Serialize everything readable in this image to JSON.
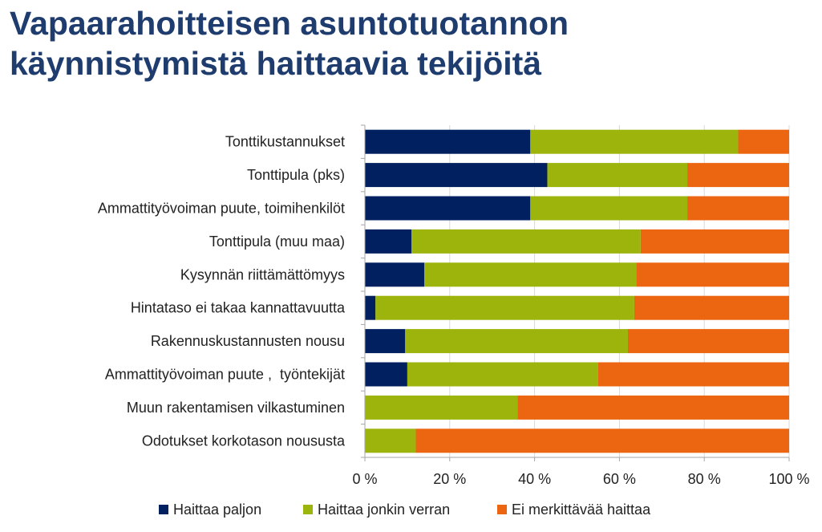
{
  "title": {
    "line1": "Vapaarahoitteisen asuntotuotannon",
    "line2": "käynnistymistä haittaavia tekijöitä",
    "color": "#1f3c6e"
  },
  "chart_data": {
    "type": "bar",
    "orientation": "horizontal",
    "stacked": "100%",
    "categories": [
      "Tonttikustannukset",
      "Tonttipula (pks)",
      "Ammattityövoiman puute, toimihenkilöt",
      "Tonttipula (muu maa)",
      "Kysynnän riittämättömyys",
      "Hintataso ei takaa kannattavuutta",
      "Rakennuskustannusten nousu",
      "Ammattityövoiman puute ,  työntekijät",
      "Muun rakentamisen vilkastuminen",
      "Odotukset korkotason noususta"
    ],
    "series": [
      {
        "name": "Haittaa paljon",
        "color": "#002060",
        "values": [
          39,
          43,
          39,
          11,
          14,
          2.5,
          9.5,
          10,
          0,
          0
        ]
      },
      {
        "name": "Haittaa jonkin verran",
        "color": "#9cb40c",
        "values": [
          49,
          33,
          37,
          54,
          50,
          61,
          52.5,
          45,
          36,
          12
        ]
      },
      {
        "name": "Ei merkittävää haittaa",
        "color": "#ec6611",
        "values": [
          12,
          24,
          24,
          35,
          36,
          36.5,
          38,
          45,
          64,
          88
        ]
      }
    ],
    "x_ticks": [
      "0 %",
      "20 %",
      "40 %",
      "60 %",
      "80 %",
      "100 %"
    ],
    "xlim": [
      0,
      100
    ],
    "grid": true,
    "legend_position": "bottom"
  }
}
